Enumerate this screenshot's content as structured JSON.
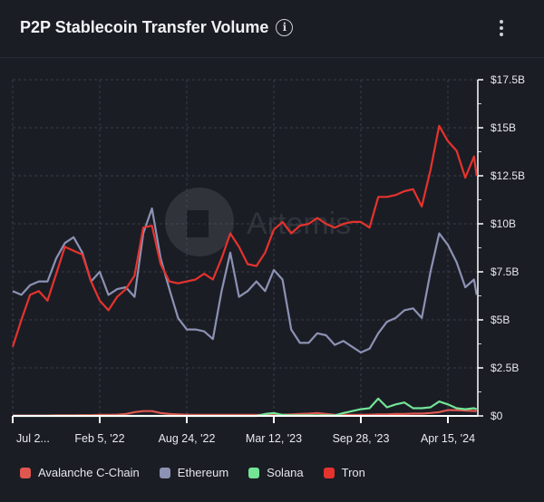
{
  "header": {
    "title": "P2P Stablecoin Transfer Volume",
    "info_icon": "info-icon",
    "menu_icon": "more-vertical-icon"
  },
  "watermark": "Artemis",
  "chart_data": {
    "type": "line",
    "title": "P2P Stablecoin Transfer Volume",
    "xlabel": "",
    "ylabel": "",
    "x_tick_labels": [
      "Jul 2...",
      "Feb 5, '22",
      "Aug 24, '22",
      "Mar 12, '23",
      "Sep 28, '23",
      "Apr 15, '24"
    ],
    "x_ticks": [
      "2021-07-20",
      "2022-02-05",
      "2022-08-24",
      "2023-03-12",
      "2023-09-28",
      "2024-04-15"
    ],
    "xlim": [
      "2021-07-20",
      "2024-06-20"
    ],
    "y_tick_labels": [
      "$0",
      "$2.5B",
      "$5B",
      "$7.5B",
      "$10B",
      "$12.5B",
      "$15B",
      "$17.5B"
    ],
    "y_ticks": [
      0,
      2.5,
      5,
      7.5,
      10,
      12.5,
      15,
      17.5
    ],
    "ylim": [
      0,
      17.5
    ],
    "y_unit": "billions USD",
    "y_axis_side": "right",
    "grid": true,
    "legend_position": "bottom",
    "x": [
      "2021-07-20",
      "2021-08-09",
      "2021-08-29",
      "2021-09-18",
      "2021-10-08",
      "2021-10-28",
      "2021-11-17",
      "2021-12-07",
      "2021-12-27",
      "2022-01-16",
      "2022-02-05",
      "2022-02-25",
      "2022-03-17",
      "2022-04-06",
      "2022-04-26",
      "2022-05-16",
      "2022-06-05",
      "2022-06-25",
      "2022-07-15",
      "2022-08-04",
      "2022-08-24",
      "2022-09-13",
      "2022-10-03",
      "2022-10-23",
      "2022-11-12",
      "2022-12-02",
      "2022-12-22",
      "2023-01-11",
      "2023-01-31",
      "2023-02-20",
      "2023-03-12",
      "2023-04-01",
      "2023-04-21",
      "2023-05-11",
      "2023-05-31",
      "2023-06-20",
      "2023-07-10",
      "2023-07-30",
      "2023-08-19",
      "2023-09-08",
      "2023-09-28",
      "2023-10-18",
      "2023-11-07",
      "2023-11-27",
      "2023-12-17",
      "2024-01-06",
      "2024-01-26",
      "2024-02-15",
      "2024-03-06",
      "2024-03-26",
      "2024-04-15",
      "2024-05-05",
      "2024-05-25",
      "2024-06-14",
      "2024-06-20"
    ],
    "series": [
      {
        "name": "Avalanche C-Chain",
        "color": "#e0574f",
        "values": [
          0.02,
          0.02,
          0.02,
          0.02,
          0.02,
          0.03,
          0.03,
          0.03,
          0.04,
          0.04,
          0.05,
          0.05,
          0.06,
          0.1,
          0.2,
          0.25,
          0.25,
          0.15,
          0.1,
          0.08,
          0.06,
          0.05,
          0.05,
          0.05,
          0.05,
          0.05,
          0.05,
          0.05,
          0.05,
          0.05,
          0.05,
          0.06,
          0.08,
          0.1,
          0.12,
          0.15,
          0.1,
          0.06,
          0.05,
          0.05,
          0.05,
          0.06,
          0.08,
          0.08,
          0.1,
          0.1,
          0.12,
          0.12,
          0.15,
          0.2,
          0.3,
          0.3,
          0.28,
          0.26,
          0.25
        ]
      },
      {
        "name": "Ethereum",
        "color": "#8c92b3",
        "values": [
          6.5,
          6.3,
          6.8,
          7.0,
          7.0,
          8.2,
          9.0,
          9.3,
          8.5,
          7.0,
          7.5,
          6.3,
          6.6,
          6.7,
          6.2,
          9.5,
          10.8,
          8.2,
          6.6,
          5.1,
          4.5,
          4.5,
          4.4,
          4.0,
          6.5,
          8.5,
          6.2,
          6.5,
          7.0,
          6.5,
          7.6,
          7.1,
          4.5,
          3.8,
          3.8,
          4.3,
          4.2,
          3.7,
          3.9,
          3.6,
          3.3,
          3.5,
          4.3,
          4.9,
          5.1,
          5.5,
          5.6,
          5.1,
          7.5,
          9.5,
          8.9,
          8.0,
          6.7,
          7.1,
          6.3
        ]
      },
      {
        "name": "Solana",
        "color": "#72e596",
        "values": [
          0,
          0,
          0,
          0,
          0,
          0,
          0,
          0,
          0,
          0,
          0,
          0,
          0,
          0,
          0,
          0,
          0,
          0,
          0,
          0,
          0,
          0,
          0,
          0,
          0,
          0,
          0,
          0,
          0,
          0.1,
          0.15,
          0.05,
          0.03,
          0.03,
          0.03,
          0.03,
          0.03,
          0.03,
          0.15,
          0.25,
          0.35,
          0.4,
          0.9,
          0.45,
          0.6,
          0.7,
          0.4,
          0.4,
          0.45,
          0.75,
          0.6,
          0.4,
          0.35,
          0.4,
          0.35
        ]
      },
      {
        "name": "Tron",
        "color": "#e5332d",
        "values": [
          3.6,
          5.0,
          6.3,
          6.5,
          6.0,
          7.4,
          8.8,
          8.6,
          8.4,
          7.0,
          6.0,
          5.5,
          6.2,
          6.6,
          7.3,
          9.8,
          9.9,
          7.9,
          7.0,
          6.9,
          7.0,
          7.1,
          7.4,
          7.1,
          8.2,
          9.5,
          8.8,
          7.9,
          7.8,
          8.5,
          9.7,
          10.1,
          9.5,
          9.9,
          10.0,
          10.3,
          10.0,
          9.8,
          10.0,
          10.1,
          10.1,
          9.8,
          11.4,
          11.4,
          11.5,
          11.7,
          11.8,
          10.9,
          12.8,
          15.1,
          14.3,
          13.8,
          12.4,
          13.5,
          12.5
        ]
      }
    ]
  }
}
